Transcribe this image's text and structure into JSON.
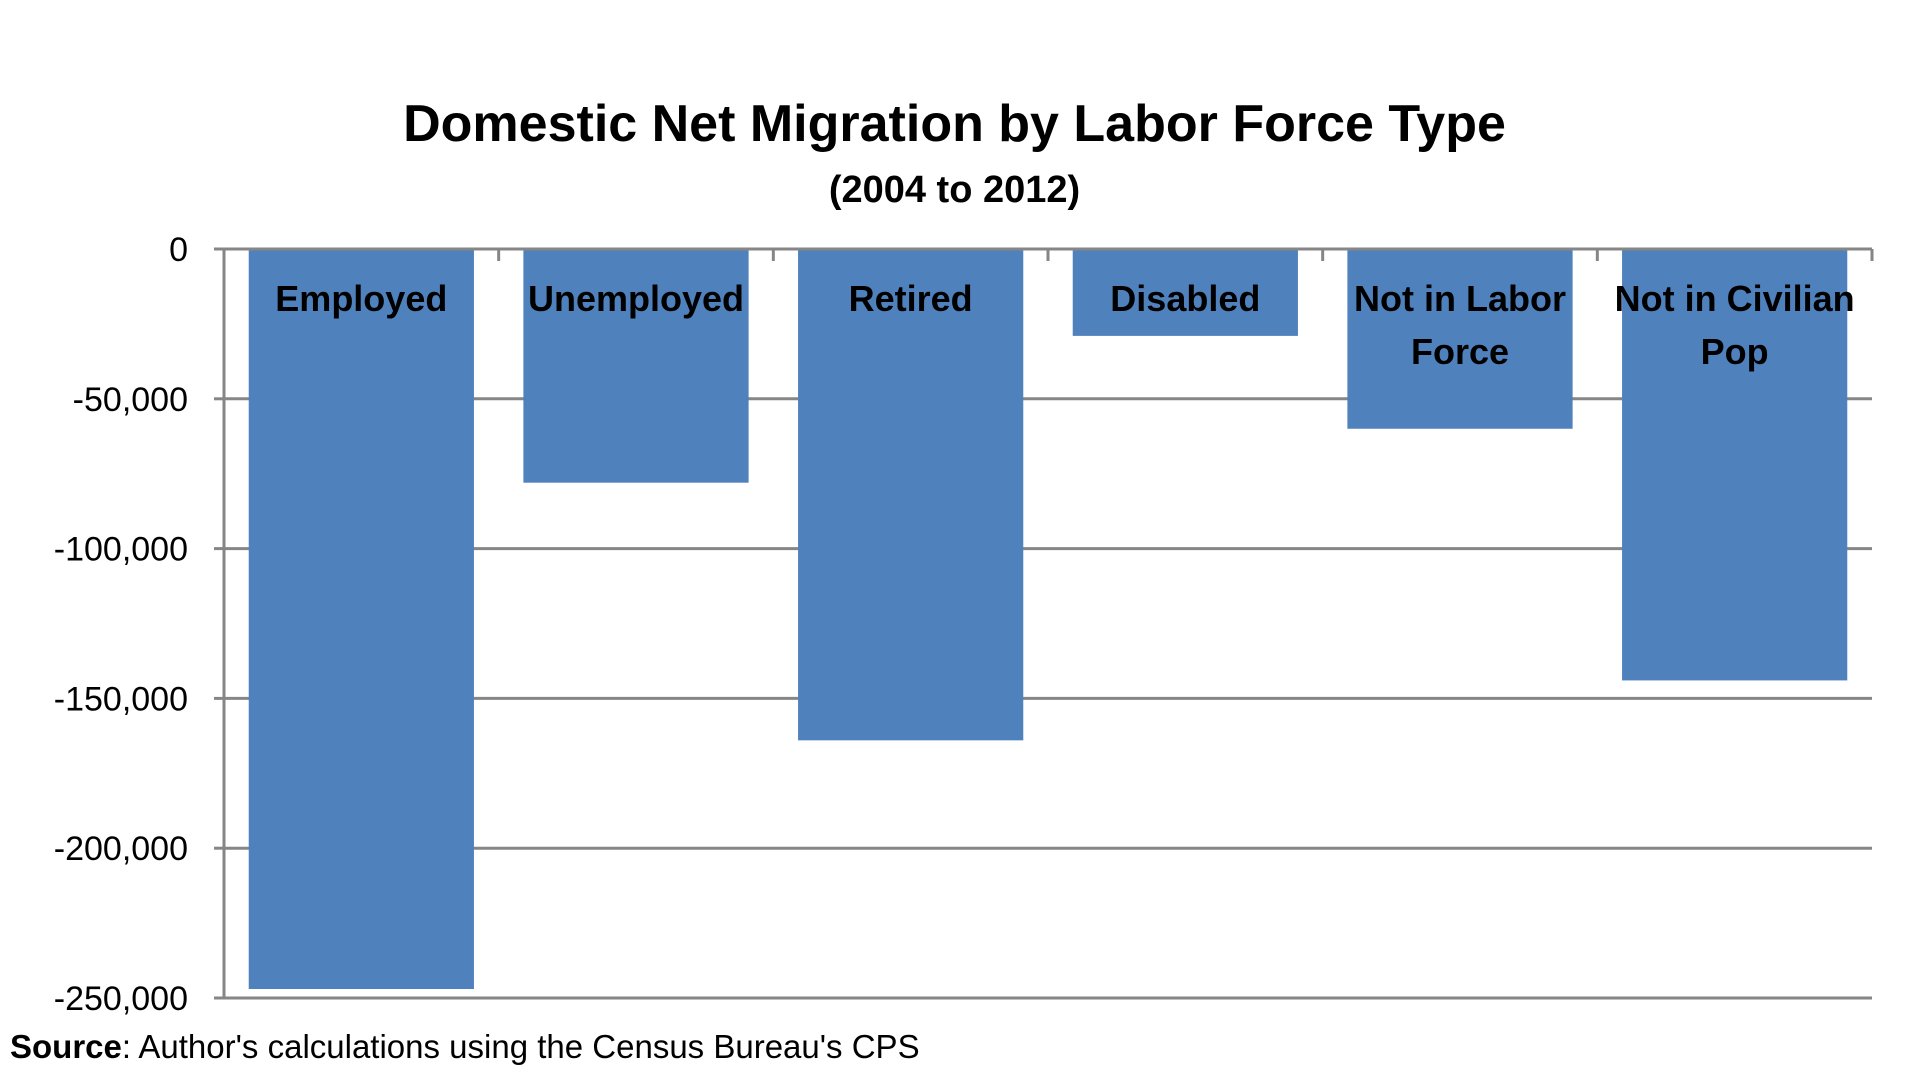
{
  "chart_data": {
    "type": "bar",
    "title": "Domestic Net Migration by Labor Force Type",
    "subtitle": "(2004 to 2012)",
    "categories": [
      "Employed",
      "Unemployed",
      "Retired",
      "Disabled",
      "Not in Labor Force",
      "Not in Civilian Pop"
    ],
    "category_lines": [
      [
        "Employed"
      ],
      [
        "Unemployed"
      ],
      [
        "Retired"
      ],
      [
        "Disabled"
      ],
      [
        "Not in Labor",
        "Force"
      ],
      [
        "Not in Civilian",
        "Pop"
      ]
    ],
    "values": [
      -247000,
      -78000,
      -164000,
      -29000,
      -60000,
      -144000
    ],
    "xlabel": "",
    "ylabel": "",
    "ylim": [
      -250000,
      0
    ],
    "yticks": [
      0,
      -50000,
      -100000,
      -150000,
      -200000,
      -250000
    ],
    "ytick_labels": [
      "0",
      "-50,000",
      "-100,000",
      "-150,000",
      "-200,000",
      "-250,000"
    ],
    "grid": true,
    "legend": "none",
    "bar_color": "#4F81BD",
    "grid_color": "#868686"
  },
  "source": {
    "label": "Source",
    "text": ": Author's calculations using the Census Bureau's CPS"
  }
}
